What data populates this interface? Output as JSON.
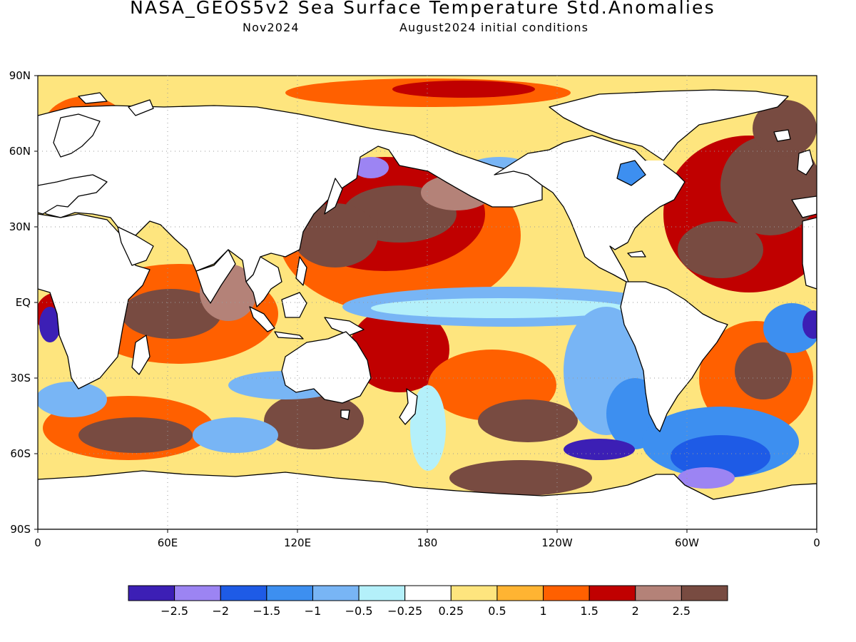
{
  "header": {
    "title": "NASA_GEOS5v2 Sea Surface Temperature Std.Anomalies",
    "valid_month": "Nov2024",
    "init_conditions": "August2024 initial conditions"
  },
  "axes": {
    "lat_ticks": [
      "90N",
      "60N",
      "30N",
      "EQ",
      "30S",
      "60S",
      "90S"
    ],
    "lon_ticks": [
      "0",
      "60E",
      "120E",
      "180",
      "120W",
      "60W",
      "0"
    ],
    "grid": "dotted"
  },
  "colorbar": {
    "colors": [
      "#3c1fb5",
      "#9c84f3",
      "#1e5be6",
      "#3d8ff0",
      "#78b5f5",
      "#b4f0fa",
      "#ffffff",
      "#fee57e",
      "#ffb432",
      "#ff6000",
      "#c00000",
      "#b48278",
      "#784b41"
    ],
    "labels": [
      "-2.5",
      "-2",
      "-1.5",
      "-1",
      "-0.5",
      "-0.25",
      "0.25",
      "0.5",
      "1",
      "1.5",
      "2",
      "2.5"
    ]
  }
}
